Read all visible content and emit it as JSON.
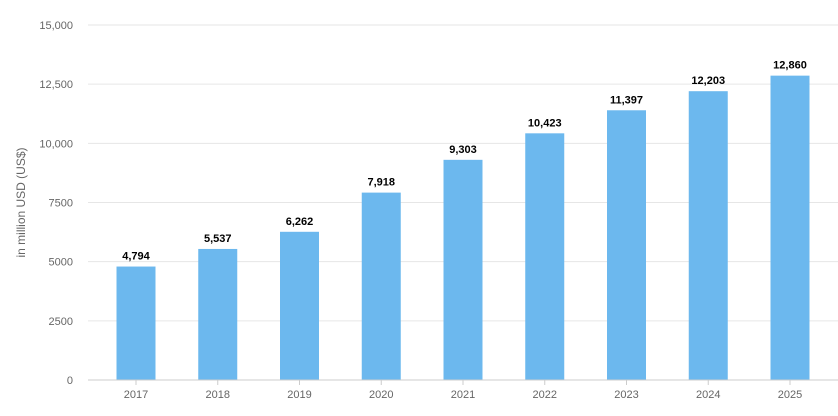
{
  "chart_data": {
    "type": "bar",
    "categories": [
      "2017",
      "2018",
      "2019",
      "2020",
      "2021",
      "2022",
      "2023",
      "2024",
      "2025"
    ],
    "values": [
      4794,
      5537,
      6262,
      7918,
      9303,
      10423,
      11397,
      12203,
      12860
    ],
    "data_labels": [
      "4,794",
      "5,537",
      "6,262",
      "7,918",
      "9,303",
      "10,423",
      "11,397",
      "12,203",
      "12,860"
    ],
    "ylabel": "in million USD (US$)",
    "ylim": [
      0,
      15000
    ],
    "yticks": [
      0,
      2500,
      5000,
      7500,
      10000,
      12500,
      15000
    ],
    "ytick_labels": [
      "0",
      "2500",
      "5000",
      "7500",
      "10,000",
      "12,500",
      "15,000"
    ],
    "grid": true,
    "bar_color": "#6cb8ee"
  }
}
